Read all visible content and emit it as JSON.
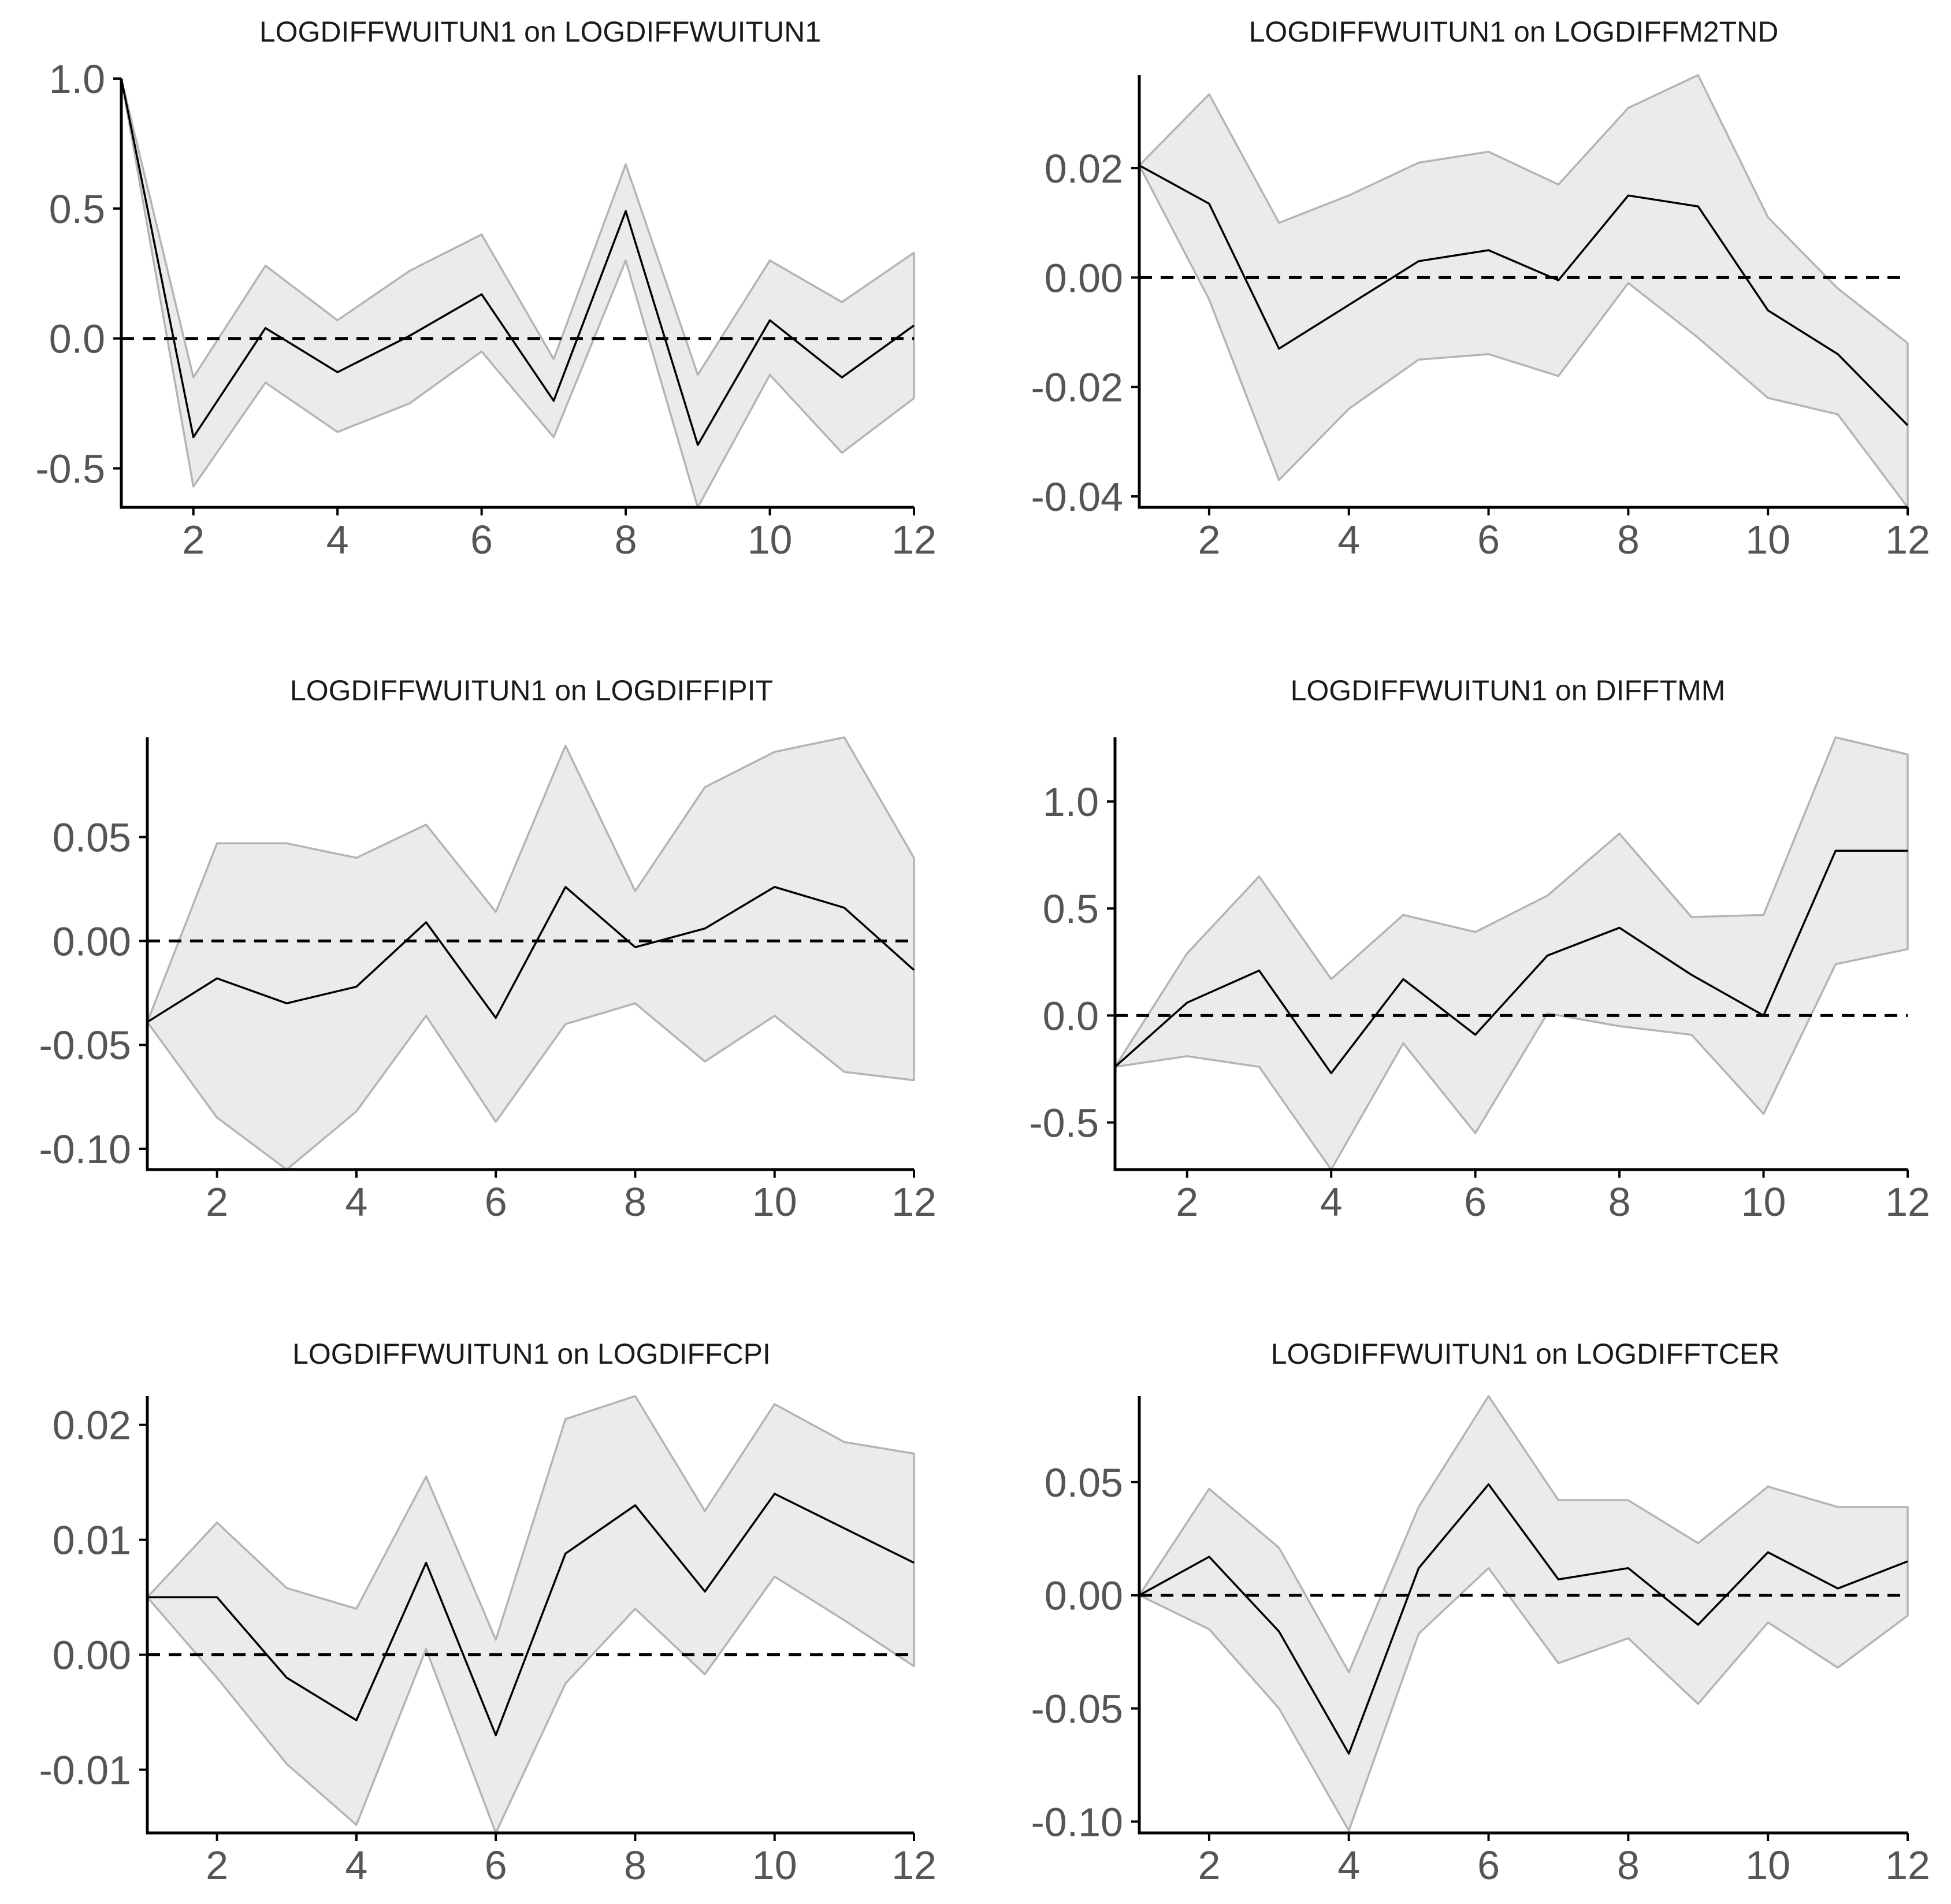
{
  "chart_data": [
    {
      "type": "line",
      "title": "LOGDIFFWUITUN1 on LOGDIFFWUITUN1",
      "xlabel": "",
      "ylabel": "",
      "x": [
        1,
        2,
        3,
        4,
        5,
        6,
        7,
        8,
        9,
        10,
        11,
        12
      ],
      "xlim": [
        1,
        12
      ],
      "xticks": [
        "2",
        "4",
        "6",
        "8",
        "10",
        "12"
      ],
      "ylim": [
        -0.65,
        1.0
      ],
      "yticks": [
        "1.0",
        "0.5",
        "0.0",
        "-0.5"
      ],
      "series": [
        {
          "name": "response",
          "values": [
            1.0,
            -0.38,
            0.04,
            -0.13,
            0.01,
            0.17,
            -0.24,
            0.49,
            -0.41,
            0.07,
            -0.15,
            0.05
          ]
        },
        {
          "name": "lower",
          "values": [
            1.0,
            -0.57,
            -0.17,
            -0.36,
            -0.25,
            -0.05,
            -0.38,
            0.3,
            -0.65,
            -0.14,
            -0.44,
            -0.23
          ]
        },
        {
          "name": "upper",
          "values": [
            1.0,
            -0.15,
            0.28,
            0.07,
            0.26,
            0.4,
            -0.08,
            0.67,
            -0.14,
            0.3,
            0.14,
            0.33
          ]
        }
      ],
      "zero_line": 0
    },
    {
      "type": "line",
      "title": "LOGDIFFWUITUN1 on LOGDIFFM2TND",
      "xlabel": "",
      "ylabel": "",
      "x": [
        1,
        2,
        3,
        4,
        5,
        6,
        7,
        8,
        9,
        10,
        11,
        12
      ],
      "xlim": [
        1,
        12
      ],
      "xticks": [
        "2",
        "4",
        "6",
        "8",
        "10",
        "12"
      ],
      "ylim": [
        -0.042,
        0.037
      ],
      "yticks": [
        "0.02",
        "0.00",
        "-0.02",
        "-0.04"
      ],
      "series": [
        {
          "name": "response",
          "values": [
            0.0205,
            0.0135,
            -0.013,
            -0.005,
            0.003,
            0.005,
            -0.0005,
            0.015,
            0.013,
            -0.006,
            -0.014,
            -0.027
          ]
        },
        {
          "name": "lower",
          "values": [
            0.0205,
            -0.004,
            -0.037,
            -0.024,
            -0.015,
            -0.014,
            -0.018,
            -0.001,
            -0.011,
            -0.022,
            -0.025,
            -0.042
          ]
        },
        {
          "name": "upper",
          "values": [
            0.0205,
            0.0335,
            0.01,
            0.015,
            0.021,
            0.023,
            0.017,
            0.031,
            0.037,
            0.011,
            -0.002,
            -0.012
          ]
        }
      ],
      "zero_line": 0
    },
    {
      "type": "line",
      "title": "LOGDIFFWUITUN1 on LOGDIFFIPIT",
      "xlabel": "",
      "ylabel": "",
      "x": [
        1,
        2,
        3,
        4,
        5,
        6,
        7,
        8,
        9,
        10,
        11,
        12
      ],
      "xlim": [
        1,
        12
      ],
      "xticks": [
        "2",
        "4",
        "6",
        "8",
        "10",
        "12"
      ],
      "ylim": [
        -0.11,
        0.098
      ],
      "yticks": [
        "0.05",
        "0.00",
        "-0.05",
        "-0.10"
      ],
      "series": [
        {
          "name": "response",
          "values": [
            -0.039,
            -0.018,
            -0.03,
            -0.022,
            0.009,
            -0.037,
            0.026,
            -0.003,
            0.006,
            0.026,
            0.016,
            -0.014
          ]
        },
        {
          "name": "lower",
          "values": [
            -0.039,
            -0.085,
            -0.11,
            -0.082,
            -0.036,
            -0.087,
            -0.04,
            -0.03,
            -0.058,
            -0.036,
            -0.063,
            -0.067
          ]
        },
        {
          "name": "upper",
          "values": [
            -0.039,
            0.047,
            0.047,
            0.04,
            0.056,
            0.014,
            0.094,
            0.024,
            0.074,
            0.091,
            0.098,
            0.04
          ]
        }
      ],
      "zero_line": 0
    },
    {
      "type": "line",
      "title": "LOGDIFFWUITUN1 on DIFFTMM",
      "xlabel": "",
      "ylabel": "",
      "x": [
        1,
        2,
        3,
        4,
        5,
        6,
        7,
        8,
        9,
        10,
        11,
        12
      ],
      "xlim": [
        1,
        12
      ],
      "xticks": [
        "2",
        "4",
        "6",
        "8",
        "10",
        "12"
      ],
      "ylim": [
        -0.72,
        1.3
      ],
      "yticks": [
        "1.0",
        "0.5",
        "0.0",
        "-0.5"
      ],
      "series": [
        {
          "name": "response",
          "values": [
            -0.24,
            0.06,
            0.21,
            -0.27,
            0.17,
            -0.09,
            0.28,
            0.41,
            0.19,
            0.0,
            0.77,
            0.77
          ]
        },
        {
          "name": "lower",
          "values": [
            -0.24,
            -0.19,
            -0.24,
            -0.72,
            -0.13,
            -0.55,
            0.01,
            -0.05,
            -0.09,
            -0.46,
            0.24,
            0.31
          ]
        },
        {
          "name": "upper",
          "values": [
            -0.24,
            0.29,
            0.65,
            0.17,
            0.47,
            0.39,
            0.56,
            0.85,
            0.46,
            0.47,
            1.3,
            1.22
          ]
        }
      ],
      "zero_line": 0
    },
    {
      "type": "line",
      "title": "LOGDIFFWUITUN1 on LOGDIFFCPI",
      "xlabel": "",
      "ylabel": "",
      "x": [
        1,
        2,
        3,
        4,
        5,
        6,
        7,
        8,
        9,
        10,
        11,
        12
      ],
      "xlim": [
        1,
        12
      ],
      "xticks": [
        "2",
        "4",
        "6",
        "8",
        "10",
        "12"
      ],
      "ylim": [
        -0.0155,
        0.0225
      ],
      "yticks": [
        "0.02",
        "0.01",
        "0.00",
        "-0.01"
      ],
      "series": [
        {
          "name": "response",
          "values": [
            0.005,
            0.005,
            -0.002,
            -0.0057,
            0.008,
            -0.007,
            0.0088,
            0.013,
            0.0055,
            0.014,
            0.011,
            0.008
          ]
        },
        {
          "name": "lower",
          "values": [
            0.005,
            -0.002,
            -0.0095,
            -0.0148,
            0.0005,
            -0.0155,
            -0.0025,
            0.004,
            -0.0017,
            0.0068,
            0.003,
            -0.001
          ]
        },
        {
          "name": "upper",
          "values": [
            0.005,
            0.0115,
            0.0058,
            0.004,
            0.0155,
            0.0013,
            0.0205,
            0.0225,
            0.0125,
            0.0218,
            0.0185,
            0.0175
          ]
        }
      ],
      "zero_line": 0
    },
    {
      "type": "line",
      "title": "LOGDIFFWUITUN1 on LOGDIFFTCER",
      "xlabel": "",
      "ylabel": "",
      "x": [
        1,
        2,
        3,
        4,
        5,
        6,
        7,
        8,
        9,
        10,
        11,
        12
      ],
      "xlim": [
        1,
        12
      ],
      "xticks": [
        "2",
        "4",
        "6",
        "8",
        "10",
        "12"
      ],
      "ylim": [
        -0.105,
        0.088
      ],
      "yticks": [
        "0.05",
        "0.00",
        "-0.05",
        "-0.10"
      ],
      "series": [
        {
          "name": "response",
          "values": [
            0.0,
            0.017,
            -0.016,
            -0.07,
            0.012,
            0.049,
            0.007,
            0.012,
            -0.013,
            0.019,
            0.003,
            0.015
          ]
        },
        {
          "name": "lower",
          "values": [
            0.0,
            -0.015,
            -0.05,
            -0.104,
            -0.017,
            0.012,
            -0.03,
            -0.019,
            -0.048,
            -0.012,
            -0.032,
            -0.009
          ]
        },
        {
          "name": "upper",
          "values": [
            0.0,
            0.047,
            0.021,
            -0.034,
            0.039,
            0.088,
            0.042,
            0.042,
            0.023,
            0.048,
            0.039,
            0.039
          ]
        }
      ],
      "zero_line": 0
    }
  ]
}
